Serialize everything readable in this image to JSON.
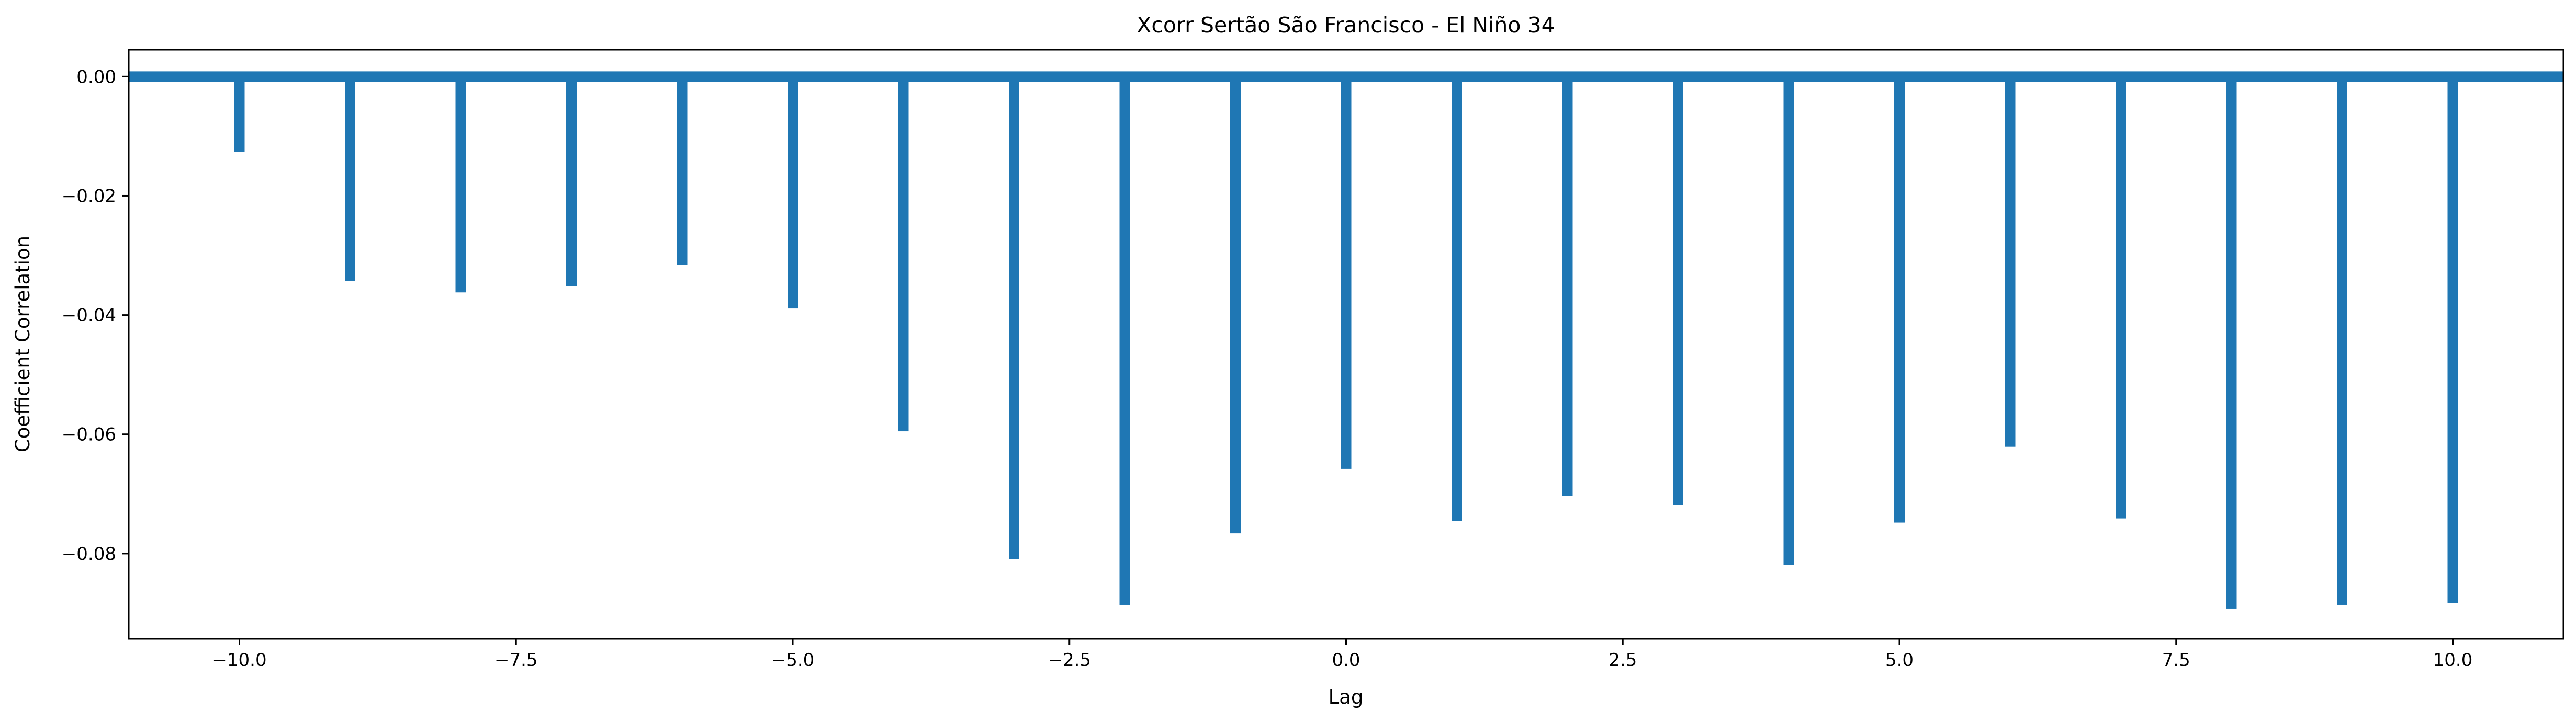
{
  "chart_data": {
    "type": "bar",
    "title": "Xcorr Sertão São Francisco - El Niño 34",
    "xlabel": "Lag",
    "ylabel": "Coefficient Correlation",
    "xlim": [
      -11.0,
      11.0
    ],
    "ylim": [
      -0.0943,
      0.0045
    ],
    "grid": false,
    "legend": "none",
    "colors": {
      "bar": "#1f77b4",
      "axis": "#000000",
      "background": "#ffffff"
    },
    "baseline": 0.0,
    "x": [
      -10,
      -9,
      -8,
      -7,
      -6,
      -5,
      -4,
      -3,
      -2,
      -1,
      0,
      1,
      2,
      3,
      4,
      5,
      6,
      7,
      8,
      9,
      10
    ],
    "values": [
      -0.0126,
      -0.0343,
      -0.0362,
      -0.0352,
      -0.0316,
      -0.0389,
      -0.0595,
      -0.0809,
      -0.0886,
      -0.0766,
      -0.0658,
      -0.0745,
      -0.0703,
      -0.0719,
      -0.0819,
      -0.0748,
      -0.0621,
      -0.0741,
      -0.0893,
      -0.0886,
      -0.0883
    ],
    "x_ticks": [
      -10.0,
      -7.5,
      -5.0,
      -2.5,
      0.0,
      2.5,
      5.0,
      7.5,
      10.0
    ],
    "x_tick_labels": [
      "−10.0",
      "−7.5",
      "−5.0",
      "−2.5",
      "0.0",
      "2.5",
      "5.0",
      "7.5",
      "10.0"
    ],
    "y_ticks": [
      0.0,
      -0.02,
      -0.04,
      -0.06,
      -0.08
    ],
    "y_tick_labels": [
      "0.00",
      "−0.02",
      "−0.04",
      "−0.06",
      "−0.08"
    ]
  }
}
